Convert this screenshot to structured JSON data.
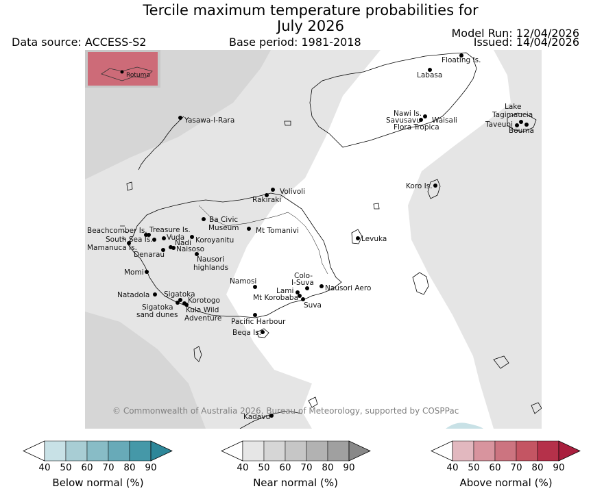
{
  "title": {
    "line1": "Tercile maximum temperature probabilities for",
    "line2": "July 2026"
  },
  "header": {
    "data_source": "Data source: ACCESS-S2",
    "base_period": "Base period: 1981-2018",
    "model_run": "Model Run: 12/04/2026",
    "issued": "Issued: 14/04/2026"
  },
  "inset": {
    "label": "Rotuma"
  },
  "copyright": "© Commonwealth of Australia 2026, Bureau of Meteorology, supported by COSPPac",
  "places": [
    "Floating Is.",
    "Labasa",
    "Yasawa-I-Rara",
    "Nawi Is.",
    "Savusavu",
    "Waisali",
    "Flora Tropica",
    "Lake",
    "Tagimaucia",
    "Taveuni",
    "Bouma",
    "Koro Is.",
    "Volivoli",
    "Rakiraki",
    "Beachcomber Is.",
    "Treasure Is.",
    "South Sea Is.",
    "Vuda",
    "Nadi",
    "Mamanuca Is.",
    "Denarau",
    "Naisoso",
    "Ba Civic",
    "Museum",
    "Koroyanitu",
    "Mt Tomanivi",
    "Levuka",
    "Nausori",
    "highlands",
    "Momi",
    "Namosi",
    "Colo-",
    "I-Suva",
    "Lami",
    "Mt Korobaba",
    "Nausori Aero",
    "Suva",
    "Natadola",
    "Sigatoka",
    "Korotogo",
    "Sigatoka",
    "sand dunes",
    "Kula Wild",
    "Adventure",
    "Pacific Harbour",
    "Beqa Is.",
    "Kadavu"
  ],
  "colorbars": [
    {
      "label": "Below normal (%)",
      "ticks": [
        "40",
        "50",
        "60",
        "70",
        "80",
        "90"
      ],
      "colors": [
        "#ffffff",
        "#c8e1e6",
        "#a8cdd4",
        "#88bcc6",
        "#68aab8",
        "#4598a8",
        "#2d8799"
      ]
    },
    {
      "label": "Near normal (%)",
      "ticks": [
        "40",
        "50",
        "60",
        "70",
        "80",
        "90"
      ],
      "colors": [
        "#ffffff",
        "#e6e6e6",
        "#d6d6d6",
        "#c6c6c6",
        "#b2b2b2",
        "#a0a0a0",
        "#888888"
      ]
    },
    {
      "label": "Above normal (%)",
      "ticks": [
        "40",
        "50",
        "60",
        "70",
        "80",
        "90"
      ],
      "colors": [
        "#ffffff",
        "#e2b8bf",
        "#d8949e",
        "#cc7480",
        "#c45563",
        "#b5314a",
        "#a91f3e"
      ]
    }
  ]
}
